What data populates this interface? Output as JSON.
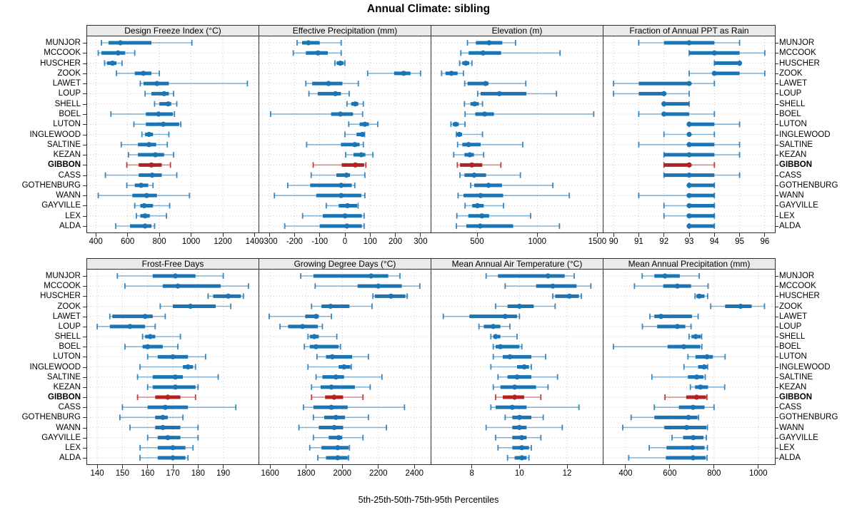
{
  "title": "Annual Climate: sibling",
  "caption": "5th-25th-50th-75th-95th Percentiles",
  "highlight_station": "GIBBON",
  "colors": {
    "series": "#1b74b4",
    "highlight": "#b22222",
    "strip_bg": "#eaeaea",
    "grid": "#c9c9c9",
    "border": "#2e2e2e"
  },
  "stations": [
    "MUNJOR",
    "MCCOOK",
    "HUSCHER",
    "ZOOK",
    "LAWET",
    "LOUP",
    "SHELL",
    "BOEL",
    "LUTON",
    "INGLEWOOD",
    "SALTINE",
    "KEZAN",
    "GIBBON",
    "CASS",
    "GOTHENBURG",
    "WANN",
    "GAYVILLE",
    "LEX",
    "ALDA"
  ],
  "chart_data": {
    "type": "dotplot-percentiles",
    "percentile_labels": [
      "5th",
      "25th",
      "50th",
      "75th",
      "95th"
    ],
    "legend_position": "none",
    "grid": "dotted",
    "panels": [
      {
        "title": "Design Freeze Index (°C)",
        "row": 0,
        "col": 0,
        "xlim": [
          345,
          1425
        ],
        "ticks": [
          400,
          600,
          800,
          1000,
          1200,
          1400
        ],
        "values": [
          [
            435,
            480,
            555,
            750,
            1005
          ],
          [
            415,
            435,
            540,
            585,
            645
          ],
          [
            455,
            470,
            505,
            530,
            565
          ],
          [
            530,
            645,
            700,
            750,
            800
          ],
          [
            680,
            700,
            785,
            860,
            1355
          ],
          [
            710,
            750,
            830,
            860,
            890
          ],
          [
            770,
            800,
            855,
            875,
            910
          ],
          [
            495,
            715,
            795,
            885,
            895
          ],
          [
            640,
            715,
            825,
            925,
            935
          ],
          [
            690,
            710,
            735,
            760,
            860
          ],
          [
            560,
            665,
            735,
            780,
            850
          ],
          [
            605,
            665,
            775,
            830,
            890
          ],
          [
            595,
            670,
            750,
            815,
            870
          ],
          [
            460,
            670,
            755,
            815,
            910
          ],
          [
            595,
            645,
            685,
            730,
            760
          ],
          [
            415,
            630,
            720,
            785,
            990
          ],
          [
            645,
            680,
            705,
            760,
            865
          ],
          [
            655,
            680,
            710,
            740,
            845
          ],
          [
            525,
            615,
            710,
            750,
            770
          ]
        ]
      },
      {
        "title": "Effective Precipitation (mm)",
        "row": 0,
        "col": 1,
        "xlim": [
          -340,
          340
        ],
        "ticks": [
          -300,
          -200,
          -100,
          0,
          100,
          200,
          300
        ],
        "values": [
          [
            -190,
            -170,
            -145,
            -100,
            -15
          ],
          [
            -205,
            -155,
            -107,
            -68,
            -15
          ],
          [
            -40,
            -33,
            -18,
            -5,
            0
          ],
          [
            90,
            195,
            233,
            260,
            300
          ],
          [
            -155,
            -130,
            -65,
            -10,
            53
          ],
          [
            -143,
            -108,
            -38,
            -16,
            17
          ],
          [
            8,
            25,
            41,
            53,
            73
          ],
          [
            -295,
            -55,
            -18,
            32,
            70
          ],
          [
            15,
            58,
            79,
            95,
            130
          ],
          [
            0,
            46,
            69,
            76,
            78
          ],
          [
            -152,
            -16,
            39,
            58,
            73
          ],
          [
            3,
            34,
            65,
            81,
            111
          ],
          [
            -126,
            -13,
            41,
            76,
            83
          ],
          [
            -134,
            -34,
            6,
            20,
            79
          ],
          [
            -227,
            -138,
            -15,
            27,
            39
          ],
          [
            -280,
            -114,
            -15,
            65,
            79
          ],
          [
            -74,
            -25,
            10,
            48,
            52
          ],
          [
            -168,
            -88,
            0,
            67,
            76
          ],
          [
            -239,
            -100,
            8,
            67,
            76
          ]
        ]
      },
      {
        "title": "Elevation (m)",
        "row": 0,
        "col": 2,
        "xlim": [
          120,
          1545
        ],
        "ticks": [
          500,
          1000,
          1500
        ],
        "values": [
          [
            420,
            490,
            600,
            710,
            820
          ],
          [
            365,
            430,
            550,
            700,
            1190
          ],
          [
            355,
            377,
            407,
            435,
            457
          ],
          [
            205,
            237,
            287,
            338,
            387
          ],
          [
            397,
            421,
            570,
            595,
            905
          ],
          [
            505,
            530,
            685,
            910,
            1160
          ],
          [
            395,
            445,
            480,
            515,
            545
          ],
          [
            400,
            485,
            563,
            640,
            1470
          ],
          [
            283,
            298,
            322,
            348,
            400
          ],
          [
            328,
            336,
            352,
            375,
            545
          ],
          [
            338,
            377,
            430,
            530,
            880
          ],
          [
            306,
            395,
            440,
            474,
            555
          ],
          [
            336,
            358,
            457,
            543,
            698
          ],
          [
            358,
            395,
            476,
            575,
            860
          ],
          [
            447,
            476,
            595,
            707,
            1130
          ],
          [
            342,
            387,
            530,
            717,
            1267
          ],
          [
            400,
            460,
            504,
            555,
            720
          ],
          [
            332,
            427,
            540,
            600,
            945
          ],
          [
            328,
            411,
            526,
            800,
            1185
          ]
        ]
      },
      {
        "title": "Fraction of Annual PPT as Rain",
        "row": 0,
        "col": 3,
        "xlim": [
          89.6,
          96.4
        ],
        "ticks": [
          90,
          91,
          92,
          93,
          94,
          95,
          96
        ],
        "values": [
          [
            91,
            92,
            93,
            94,
            95
          ],
          [
            93,
            93,
            94,
            95,
            96
          ],
          [
            94,
            94,
            95,
            95,
            95
          ],
          [
            93,
            94,
            94,
            95,
            96
          ],
          [
            90,
            91,
            93,
            93,
            94
          ],
          [
            90,
            91,
            92,
            92,
            93
          ],
          [
            92,
            92,
            92,
            93,
            93
          ],
          [
            91,
            92,
            92,
            93,
            94
          ],
          [
            93,
            93,
            93,
            94,
            95
          ],
          [
            92,
            93,
            93,
            93,
            94
          ],
          [
            91,
            93,
            93,
            94,
            95
          ],
          [
            92,
            92,
            93,
            94,
            95
          ],
          [
            92,
            92,
            93,
            93,
            94
          ],
          [
            92,
            92,
            93,
            94,
            95
          ],
          [
            93,
            93,
            93,
            94,
            94
          ],
          [
            91,
            93,
            93,
            94,
            94
          ],
          [
            92,
            93,
            93,
            94,
            94
          ],
          [
            92,
            93,
            93,
            94,
            94
          ],
          [
            93,
            93,
            93,
            94,
            94
          ]
        ]
      },
      {
        "title": "Frost-Free Days",
        "row": 1,
        "col": 0,
        "xlim": [
          136,
          204
        ],
        "ticks": [
          140,
          150,
          160,
          170,
          180,
          190
        ],
        "values": [
          [
            148,
            162,
            171,
            179,
            190
          ],
          [
            151,
            166,
            172,
            189,
            200
          ],
          [
            184,
            186,
            192,
            197,
            198
          ],
          [
            165,
            170,
            177,
            187,
            193
          ],
          [
            145,
            146,
            159,
            162,
            167
          ],
          [
            140,
            145,
            153,
            159,
            163
          ],
          [
            158,
            159,
            161,
            163,
            173
          ],
          [
            151,
            158,
            160,
            166,
            172
          ],
          [
            160,
            164,
            170,
            176,
            183
          ],
          [
            157,
            174,
            176,
            178,
            179
          ],
          [
            156,
            162,
            171,
            174,
            188
          ],
          [
            160,
            162,
            171,
            179,
            180
          ],
          [
            156,
            163,
            168,
            173,
            179
          ],
          [
            150,
            160,
            167,
            176,
            195
          ],
          [
            149,
            163,
            166,
            168,
            174
          ],
          [
            153,
            163,
            166,
            173,
            180
          ],
          [
            160,
            164,
            168,
            173,
            180
          ],
          [
            157,
            164,
            170,
            175,
            178
          ],
          [
            157,
            164,
            170,
            175,
            176
          ]
        ]
      },
      {
        "title": "Growing Degree Days (°C)",
        "row": 1,
        "col": 1,
        "xlim": [
          1540,
          2490
        ],
        "ticks": [
          1600,
          1800,
          2000,
          2200,
          2400
        ],
        "values": [
          [
            1770,
            1840,
            2160,
            2255,
            2320
          ],
          [
            1850,
            2085,
            2200,
            2330,
            2430
          ],
          [
            2170,
            2180,
            2270,
            2350,
            2360
          ],
          [
            1830,
            1885,
            1935,
            2040,
            2165
          ],
          [
            1595,
            1795,
            1855,
            1870,
            1940
          ],
          [
            1655,
            1700,
            1780,
            1865,
            1890
          ],
          [
            1810,
            1820,
            1845,
            1870,
            1970
          ],
          [
            1790,
            1820,
            1855,
            1980,
            1990
          ],
          [
            1860,
            1910,
            1945,
            2055,
            2145
          ],
          [
            1810,
            1980,
            2010,
            2045,
            2050
          ],
          [
            1855,
            1890,
            1965,
            2010,
            2220
          ],
          [
            1830,
            1880,
            1940,
            2070,
            2155
          ],
          [
            1830,
            1905,
            1955,
            2005,
            2115
          ],
          [
            1785,
            1840,
            1940,
            2030,
            2345
          ],
          [
            1840,
            1900,
            1965,
            2015,
            2145
          ],
          [
            1760,
            1870,
            1955,
            2005,
            2245
          ],
          [
            1840,
            1925,
            1980,
            2000,
            2115
          ],
          [
            1820,
            1885,
            1975,
            2035,
            2040
          ],
          [
            1865,
            1910,
            1975,
            2030,
            2035
          ]
        ]
      },
      {
        "title": "Mean Annual Air Temperature (°C)",
        "row": 1,
        "col": 2,
        "xlim": [
          6.3,
          13.5
        ],
        "ticks": [
          8,
          10,
          12
        ],
        "values": [
          [
            8.6,
            9.1,
            11.2,
            11.9,
            12.3
          ],
          [
            9.4,
            10.7,
            11.4,
            12.4,
            13.0
          ],
          [
            11.4,
            11.5,
            12.1,
            12.5,
            12.6
          ],
          [
            9.0,
            9.5,
            10.0,
            10.6,
            11.5
          ],
          [
            6.8,
            7.9,
            9.4,
            9.9,
            10.0
          ],
          [
            8.3,
            8.5,
            8.9,
            9.2,
            9.6
          ],
          [
            8.8,
            8.9,
            9.0,
            9.2,
            9.9
          ],
          [
            8.9,
            9.0,
            9.2,
            10.0,
            10.1
          ],
          [
            8.9,
            9.3,
            9.6,
            10.5,
            11.1
          ],
          [
            8.8,
            9.9,
            10.2,
            10.4,
            10.5
          ],
          [
            9.1,
            9.5,
            9.9,
            10.5,
            11.6
          ],
          [
            8.9,
            9.2,
            9.8,
            10.7,
            11.2
          ],
          [
            9.0,
            9.3,
            9.8,
            10.2,
            10.9
          ],
          [
            8.8,
            9.0,
            9.7,
            10.3,
            12.5
          ],
          [
            9.4,
            9.7,
            10.0,
            10.5,
            11.0
          ],
          [
            8.6,
            9.7,
            10.0,
            10.3,
            11.8
          ],
          [
            9.0,
            9.7,
            10.1,
            10.3,
            10.9
          ],
          [
            9.1,
            9.7,
            10.1,
            10.4,
            10.5
          ],
          [
            9.5,
            9.8,
            10.1,
            10.3,
            10.4
          ]
        ]
      },
      {
        "title": "Mean Annual Precipitation (mm)",
        "row": 1,
        "col": 3,
        "xlim": [
          300,
          1075
        ],
        "ticks": [
          400,
          600,
          800,
          1000
        ],
        "values": [
          [
            475,
            530,
            578,
            645,
            733
          ],
          [
            440,
            570,
            634,
            696,
            773
          ],
          [
            714,
            720,
            733,
            757,
            771
          ],
          [
            785,
            850,
            920,
            970,
            1028
          ],
          [
            510,
            530,
            560,
            700,
            728
          ],
          [
            476,
            543,
            634,
            670,
            696
          ],
          [
            687,
            698,
            717,
            740,
            744
          ],
          [
            345,
            590,
            663,
            738,
            745
          ],
          [
            682,
            716,
            768,
            795,
            850
          ],
          [
            664,
            728,
            755,
            768,
            771
          ],
          [
            519,
            682,
            722,
            752,
            760
          ],
          [
            693,
            714,
            739,
            773,
            848
          ],
          [
            578,
            674,
            721,
            764,
            768
          ],
          [
            530,
            641,
            705,
            757,
            800
          ],
          [
            425,
            530,
            684,
            725,
            730
          ],
          [
            387,
            575,
            676,
            765,
            770
          ],
          [
            610,
            660,
            706,
            752,
            765
          ],
          [
            507,
            585,
            703,
            757,
            770
          ],
          [
            414,
            582,
            705,
            762,
            768
          ]
        ]
      }
    ]
  }
}
